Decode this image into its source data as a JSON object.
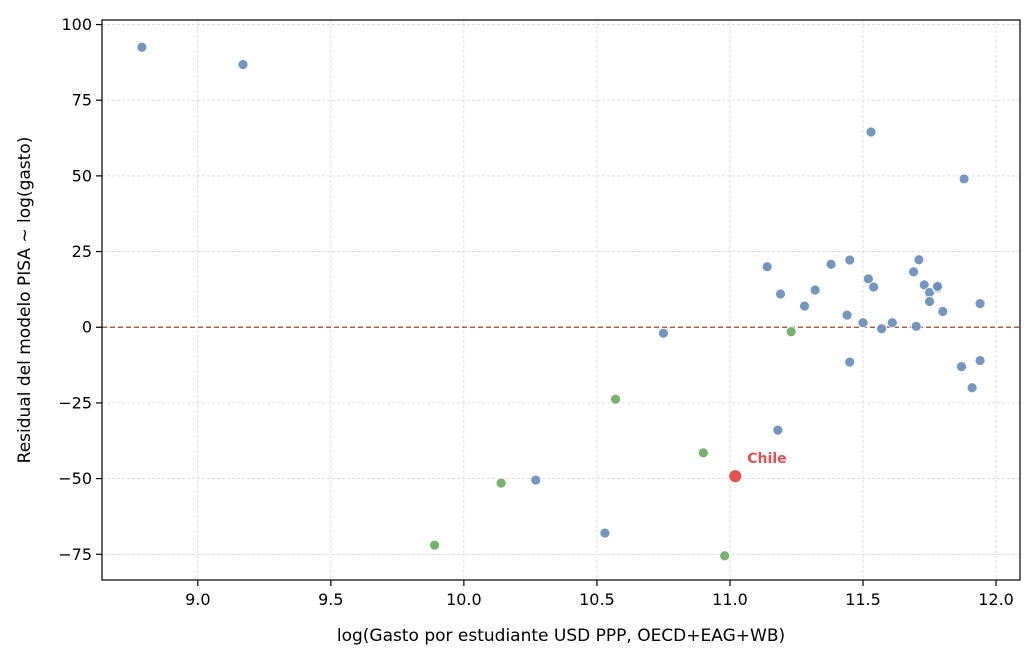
{
  "chart_data": {
    "type": "scatter",
    "title": "",
    "xlabel": "log(Gasto por estudiante USD PPP, OECD+EAG+WB)",
    "ylabel": "Residual del modelo PISA ~ log(gasto)",
    "xlim": [
      8.64,
      12.09
    ],
    "ylim": [
      -83.5,
      101.5
    ],
    "x_ticks": [
      9.0,
      9.5,
      10.0,
      10.5,
      11.0,
      11.5,
      12.0
    ],
    "x_tick_labels": [
      "9.0",
      "9.5",
      "10.0",
      "10.5",
      "11.0",
      "11.5",
      "12.0"
    ],
    "y_ticks": [
      -75,
      -50,
      -25,
      0,
      25,
      50,
      75,
      100
    ],
    "y_tick_labels": [
      "−75",
      "−50",
      "−25",
      "0",
      "25",
      "50",
      "75",
      "100"
    ],
    "grid": true,
    "reference_line": {
      "y": 0,
      "color": "#a0674a",
      "style": "dashed"
    },
    "colors": {
      "blue": "#6b8db8",
      "green": "#6daa64",
      "highlight": "#e05252"
    },
    "series": [
      {
        "color": "#6b8db8",
        "points": [
          [
            8.79,
            92.5
          ],
          [
            9.17,
            86.8
          ],
          [
            11.53,
            64.5
          ],
          [
            11.88,
            49.0
          ],
          [
            11.14,
            20.0
          ],
          [
            11.19,
            11.0
          ],
          [
            11.28,
            7.0
          ],
          [
            11.32,
            12.3
          ],
          [
            11.38,
            20.8
          ],
          [
            11.45,
            22.2
          ],
          [
            11.52,
            16.0
          ],
          [
            11.54,
            13.3
          ],
          [
            11.44,
            4.0
          ],
          [
            11.5,
            1.5
          ],
          [
            11.57,
            -0.5
          ],
          [
            11.61,
            1.5
          ],
          [
            11.69,
            18.3
          ],
          [
            11.71,
            22.3
          ],
          [
            11.73,
            14.0
          ],
          [
            11.75,
            11.5
          ],
          [
            11.75,
            8.5
          ],
          [
            11.78,
            13.0
          ],
          [
            11.78,
            13.5
          ],
          [
            11.8,
            5.2
          ],
          [
            11.7,
            0.3
          ],
          [
            11.94,
            7.8
          ],
          [
            11.45,
            -11.5
          ],
          [
            11.87,
            -13.0
          ],
          [
            11.94,
            -11.0
          ],
          [
            11.91,
            -20.0
          ],
          [
            10.75,
            -2.0
          ],
          [
            11.18,
            -34.0
          ],
          [
            10.27,
            -50.5
          ],
          [
            10.53,
            -68.0
          ]
        ]
      },
      {
        "color": "#6daa64",
        "points": [
          [
            11.23,
            -1.5
          ],
          [
            10.57,
            -23.8
          ],
          [
            10.9,
            -41.5
          ],
          [
            10.14,
            -51.5
          ],
          [
            9.89,
            -72.0
          ],
          [
            10.98,
            -75.5
          ]
        ]
      },
      {
        "color": "#e05252",
        "points": [
          [
            11.02,
            -49.2
          ]
        ],
        "annotation": "Chile"
      }
    ]
  }
}
